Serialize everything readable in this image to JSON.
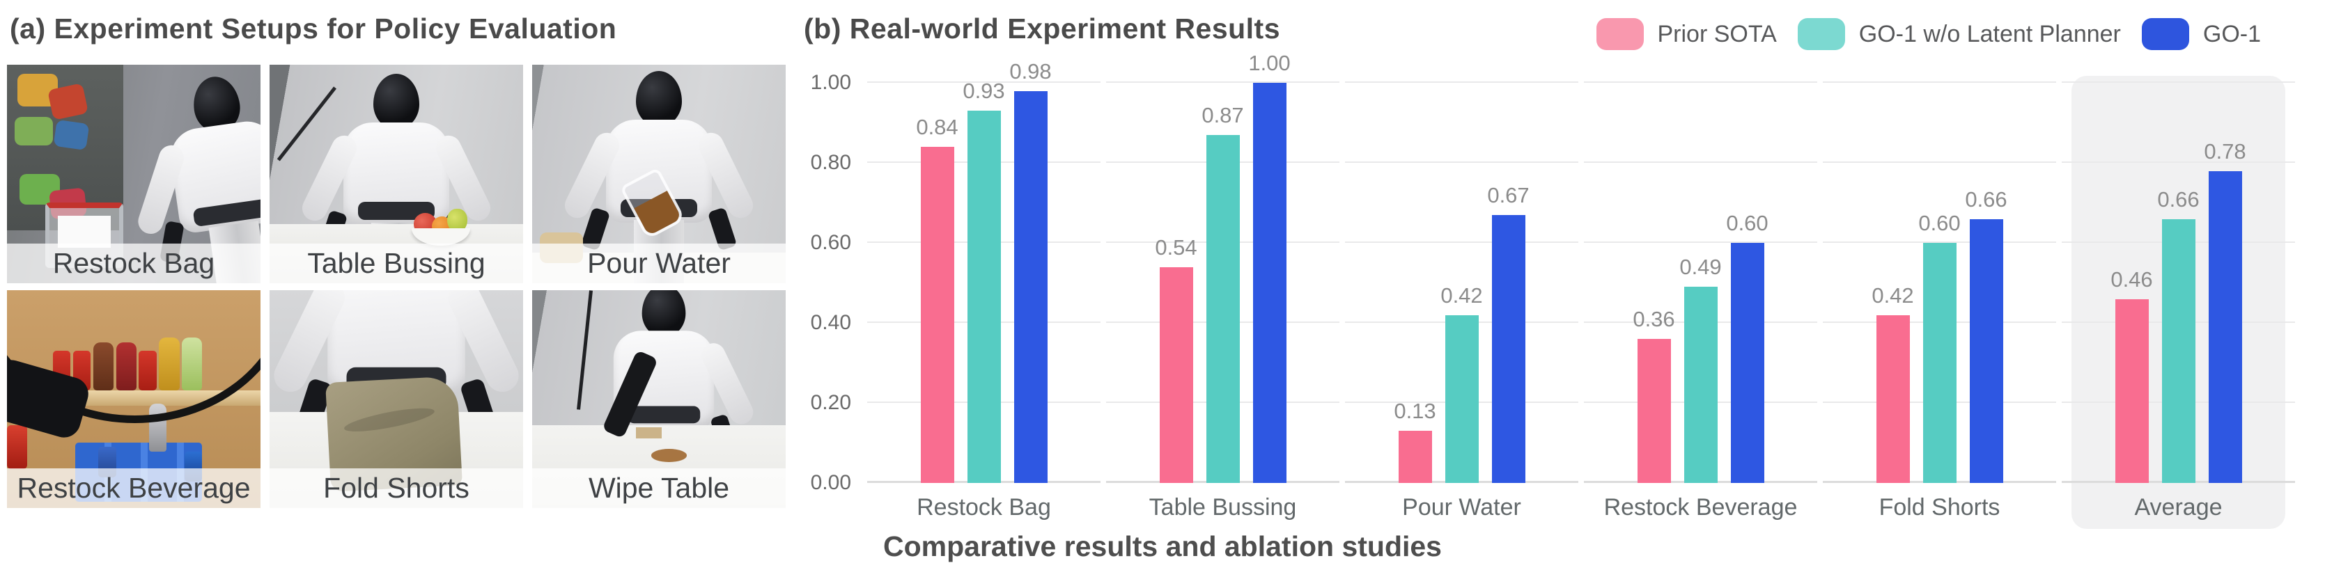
{
  "panel_a": {
    "title": "(a) Experiment Setups for Policy Evaluation",
    "setups": [
      {
        "label": "Restock Bag"
      },
      {
        "label": "Table Bussing"
      },
      {
        "label": "Pour Water"
      },
      {
        "label": "Restock Beverage"
      },
      {
        "label": "Fold Shorts"
      },
      {
        "label": "Wipe Table"
      }
    ]
  },
  "panel_b": {
    "title": "(b) Real-world Experiment Results",
    "caption": "Comparative results and ablation studies"
  },
  "chart_data": {
    "type": "bar",
    "title": "(b) Real-world Experiment Results",
    "categories": [
      "Restock Bag",
      "Table Bussing",
      "Pour Water",
      "Restock Beverage",
      "Fold Shorts",
      "Average"
    ],
    "series": [
      {
        "name": "Prior SOTA",
        "color": "#F96D90",
        "legend_color": "#F998AE",
        "values": [
          0.84,
          0.54,
          0.13,
          0.36,
          0.42,
          0.46
        ]
      },
      {
        "name": "GO-1 w/o Latent Planner",
        "color": "#56CCC2",
        "legend_color": "#7CD9D1",
        "values": [
          0.93,
          0.87,
          0.42,
          0.49,
          0.6,
          0.66
        ]
      },
      {
        "name": "GO-1",
        "color": "#2E57E2",
        "legend_color": "#2E55DE",
        "values": [
          0.98,
          1.0,
          0.67,
          0.6,
          0.66,
          0.78
        ]
      }
    ],
    "y_ticks": [
      "0.00",
      "0.20",
      "0.40",
      "0.60",
      "0.80",
      "1.00"
    ],
    "ylim": [
      0,
      1
    ],
    "grid": true,
    "legend_position": "top-right",
    "highlight_category": "Average",
    "xlabel": "",
    "ylabel": "",
    "caption": "Comparative results and ablation studies"
  }
}
